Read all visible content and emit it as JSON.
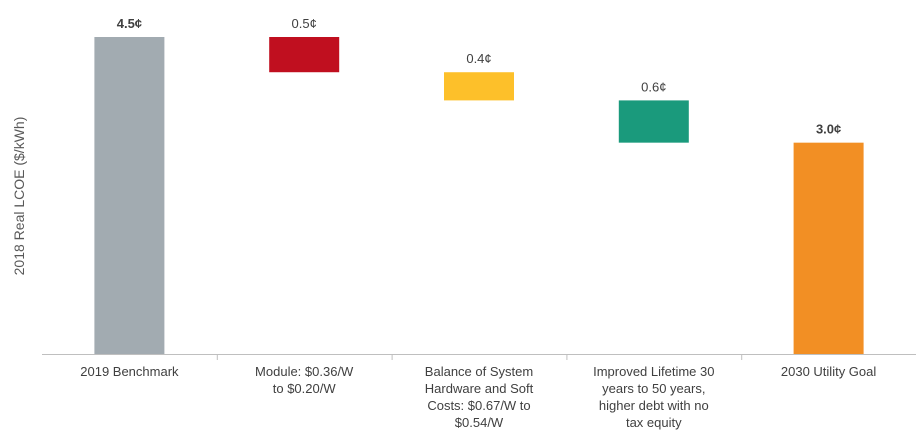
{
  "chart_data": {
    "type": "bar",
    "subtype": "waterfall",
    "title": "",
    "ylabel": "2018 Real LCOE ($/kWh)",
    "xlabel": "",
    "ylim": [
      0,
      4.5
    ],
    "grid": false,
    "legend": "none",
    "categories": [
      [
        "2019 Benchmark"
      ],
      [
        "Module: $0.36/W",
        "to $0.20/W"
      ],
      [
        "Balance of System",
        "Hardware and Soft",
        "Costs: $0.67/W to",
        "$0.54/W"
      ],
      [
        "Improved Lifetime 30",
        "years to 50 years,",
        "higher debt with no",
        "tax equity"
      ],
      [
        "2030 Utility Goal"
      ]
    ],
    "bars": [
      {
        "start": 0.0,
        "end": 4.5,
        "label": "4.5¢",
        "bold": true,
        "color": "#A2ABB1"
      },
      {
        "start": 4.5,
        "end": 4.0,
        "label": "0.5¢",
        "bold": false,
        "color": "#C00F1F"
      },
      {
        "start": 4.0,
        "end": 3.6,
        "label": "0.4¢",
        "bold": false,
        "color": "#FDC02A"
      },
      {
        "start": 3.6,
        "end": 3.0,
        "label": "0.6¢",
        "bold": false,
        "color": "#1A9A7C"
      },
      {
        "start": 0.0,
        "end": 3.0,
        "label": "3.0¢",
        "bold": true,
        "color": "#F28F24"
      }
    ]
  }
}
